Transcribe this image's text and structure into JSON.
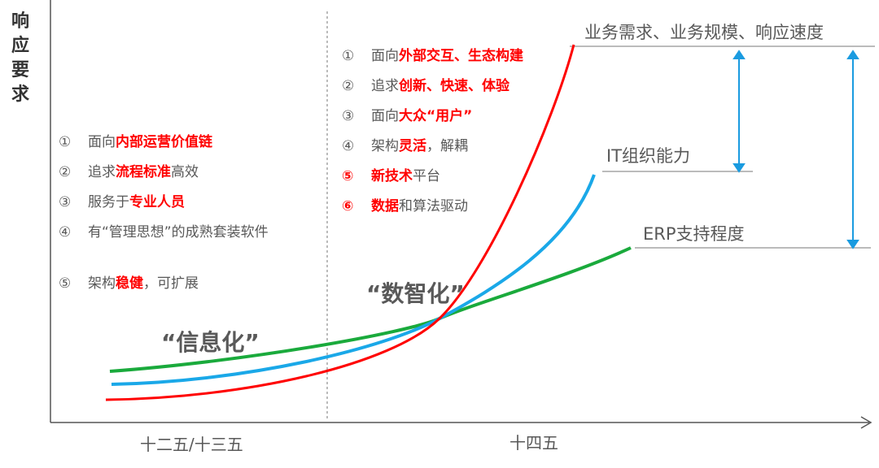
{
  "y_axis_label": "响应要求",
  "x_labels": [
    "十二五/十三五",
    "十四五"
  ],
  "stage_labels": [
    "“信息化”",
    "“数智化”"
  ],
  "curve_labels": [
    "业务需求、业务规模、响应速度",
    "IT组织能力",
    "ERP支持程度"
  ],
  "left_list": [
    {
      "marker": "①",
      "segments": [
        {
          "text": "面向"
        },
        {
          "text": "内部运营价值链",
          "color": "#ff0000"
        }
      ]
    },
    {
      "marker": "②",
      "segments": [
        {
          "text": "追求"
        },
        {
          "text": "流程标准",
          "color": "#ff0000"
        },
        {
          "text": "高效"
        }
      ]
    },
    {
      "marker": "③",
      "segments": [
        {
          "text": "服务于"
        },
        {
          "text": "专业人员",
          "color": "#ff0000"
        }
      ]
    },
    {
      "marker": "④",
      "segments": [
        {
          "text": "有“管理思想”的成熟套装软件"
        }
      ]
    },
    {
      "marker": "⑤",
      "segments": [
        {
          "text": "架构"
        },
        {
          "text": "稳健",
          "color": "#ff0000"
        },
        {
          "text": "，可扩展"
        }
      ]
    }
  ],
  "right_list": [
    {
      "marker": "①",
      "segments": [
        {
          "text": "面向"
        },
        {
          "text": "外部交互、生态构建",
          "color": "#ff0000"
        }
      ]
    },
    {
      "marker": "②",
      "segments": [
        {
          "text": "追求"
        },
        {
          "text": "创新、快速、体验",
          "color": "#ff0000"
        }
      ]
    },
    {
      "marker": "③",
      "segments": [
        {
          "text": "面向"
        },
        {
          "text": "大众“用户”",
          "color": "#ff0000"
        }
      ]
    },
    {
      "marker": "④",
      "segments": [
        {
          "text": "架构"
        },
        {
          "text": "灵活",
          "color": "#ff0000"
        },
        {
          "text": "，解耦"
        }
      ]
    },
    {
      "marker": "⑤",
      "marker_color": "#ff0000",
      "segments": [
        {
          "text": "新技术",
          "color": "#ff0000"
        },
        {
          "text": "平台"
        }
      ]
    },
    {
      "marker": "⑥",
      "marker_color": "#ff0000",
      "segments": [
        {
          "text": "数据",
          "color": "#ff0000"
        },
        {
          "text": "和算法驱动"
        }
      ]
    }
  ]
}
